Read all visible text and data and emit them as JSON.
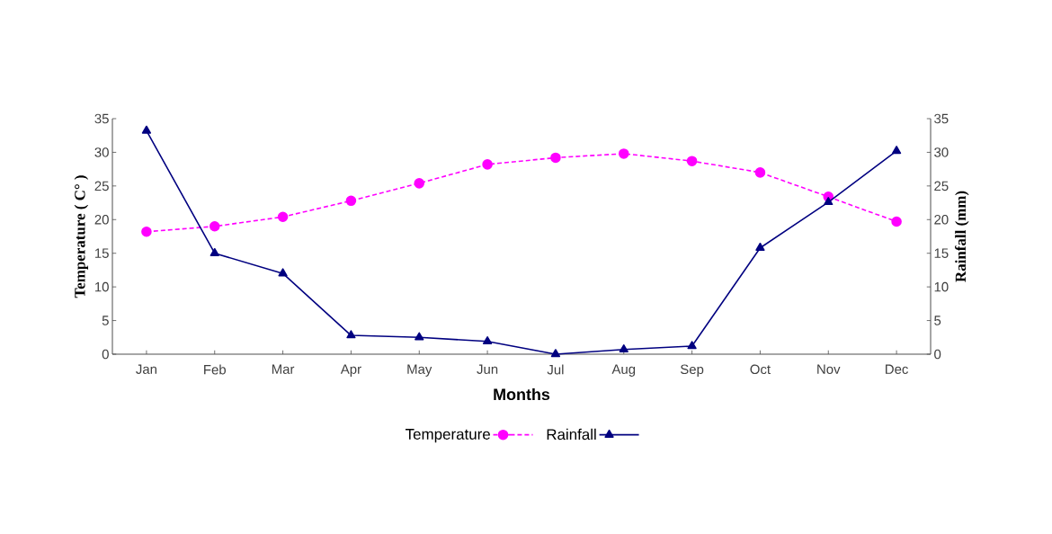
{
  "chart_data": {
    "type": "line",
    "xlabel": "Months",
    "ylabel": "Temperature ( C° )",
    "y2label": "Rainfall (mm)",
    "categories": [
      "Jan",
      "Feb",
      "Mar",
      "Apr",
      "May",
      "Jun",
      "Jul",
      "Aug",
      "Sep",
      "Oct",
      "Nov",
      "Dec"
    ],
    "series": [
      {
        "name": "Temperature",
        "color": "#ff00ff",
        "marker": "circle",
        "line_style": "dashed",
        "values": [
          18.2,
          19.0,
          20.4,
          22.8,
          25.4,
          28.2,
          29.2,
          29.8,
          28.7,
          27.0,
          23.4,
          19.7
        ]
      },
      {
        "name": "Rainfall",
        "color": "#000080",
        "marker": "triangle",
        "line_style": "solid",
        "axis": "y2",
        "values": [
          33.2,
          15.0,
          12.0,
          2.8,
          2.5,
          1.9,
          0.0,
          0.7,
          1.2,
          15.8,
          22.6,
          30.2
        ]
      }
    ],
    "ylim": [
      0,
      35
    ],
    "yticks": [
      0,
      5,
      10,
      15,
      20,
      25,
      30,
      35
    ],
    "y2lim": [
      0,
      35
    ],
    "y2ticks": [
      0,
      5,
      10,
      15,
      20,
      25,
      30,
      35
    ],
    "grid": false,
    "legend": "bottom"
  }
}
